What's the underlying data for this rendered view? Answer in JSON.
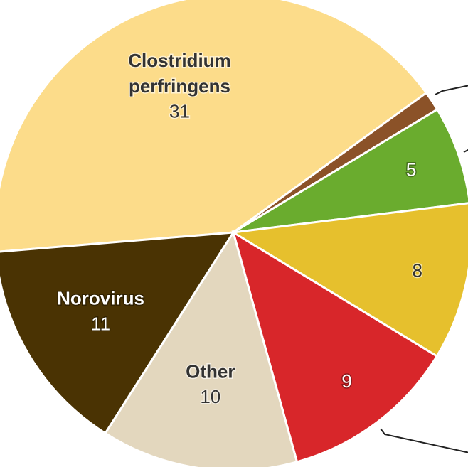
{
  "chart_data": {
    "type": "pie",
    "categories": [
      "Clostridium perfringens",
      null,
      null,
      null,
      null,
      "Other",
      "Norovirus"
    ],
    "values": [
      31,
      1,
      5,
      8,
      9,
      10,
      11
    ],
    "colors": [
      "#fcdc8a",
      "#8b5228",
      "#6aac2e",
      "#e6c02d",
      "#d8262a",
      "#e3d7be",
      "#4a3303"
    ]
  }
}
